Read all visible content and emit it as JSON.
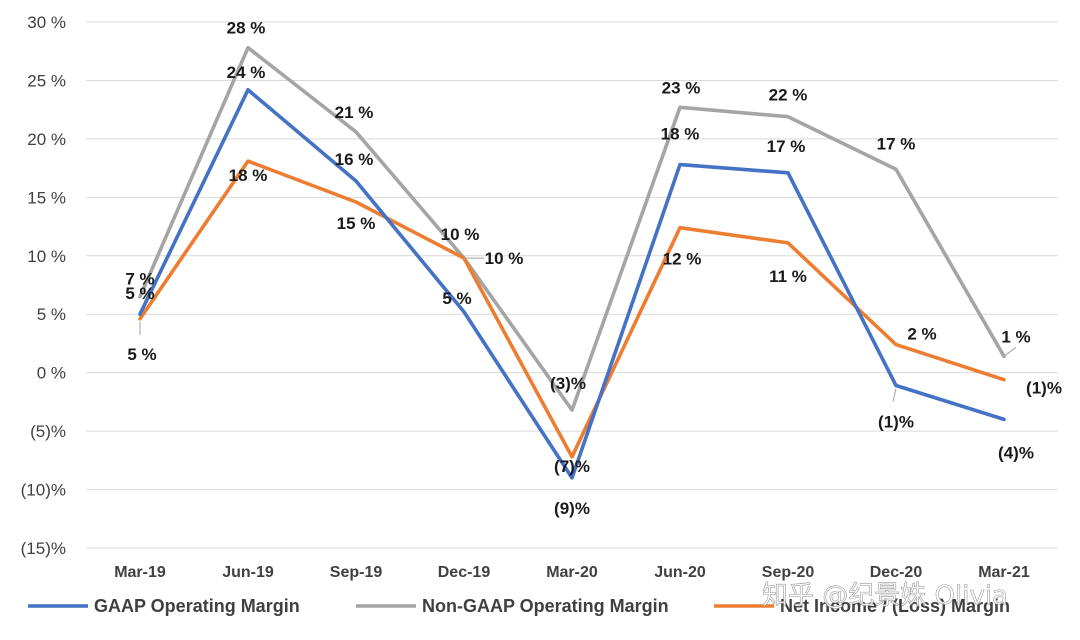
{
  "chart_data": {
    "type": "line",
    "categories": [
      "Mar-19",
      "Jun-19",
      "Sep-19",
      "Dec-19",
      "Mar-20",
      "Jun-20",
      "Sep-20",
      "Dec-20",
      "Mar-21"
    ],
    "ylim": [
      -15,
      30
    ],
    "yticks": [
      30,
      25,
      20,
      15,
      10,
      5,
      0,
      -5,
      -10,
      -15
    ],
    "ytick_labels": [
      "30 %",
      "25 %",
      "20 %",
      "15 %",
      "10 %",
      "5 %",
      "0 %",
      "(5)%",
      "(10)%",
      "(15)%"
    ],
    "grid": true,
    "legend_position": "bottom",
    "series": [
      {
        "name": "GAAP Operating Margin",
        "color": "#4472C4",
        "values": [
          5,
          24.2,
          16.4,
          5.2,
          -9,
          17.8,
          17.1,
          -1.1,
          -4
        ],
        "labels": [
          "5 %",
          "24 %",
          "16 %",
          "5 %",
          "(9)%",
          "18 %",
          "17 %",
          "(1)%",
          "(4)%"
        ]
      },
      {
        "name": "Non-GAAP Operating Margin",
        "color": "#A5A5A5",
        "values": [
          6.5,
          27.8,
          20.6,
          9.8,
          -3.2,
          22.7,
          21.9,
          17.4,
          1.4
        ],
        "labels": [
          "7 %",
          "28 %",
          "21 %",
          "10 %",
          "(3)%",
          "23 %",
          "22 %",
          "17 %",
          "1 %"
        ]
      },
      {
        "name": "Net Income / (Loss) Margin",
        "color": "#ED7D31",
        "values": [
          4.6,
          18.1,
          14.6,
          9.8,
          -7.2,
          12.4,
          11.1,
          2.4,
          -0.6
        ],
        "labels": [
          "5 %",
          "18 %",
          "15 %",
          "10 %",
          "(7)%",
          "12 %",
          "11 %",
          "2 %",
          "(1)%"
        ]
      }
    ]
  },
  "watermark": "知乎 @纪景姝 Olivia"
}
